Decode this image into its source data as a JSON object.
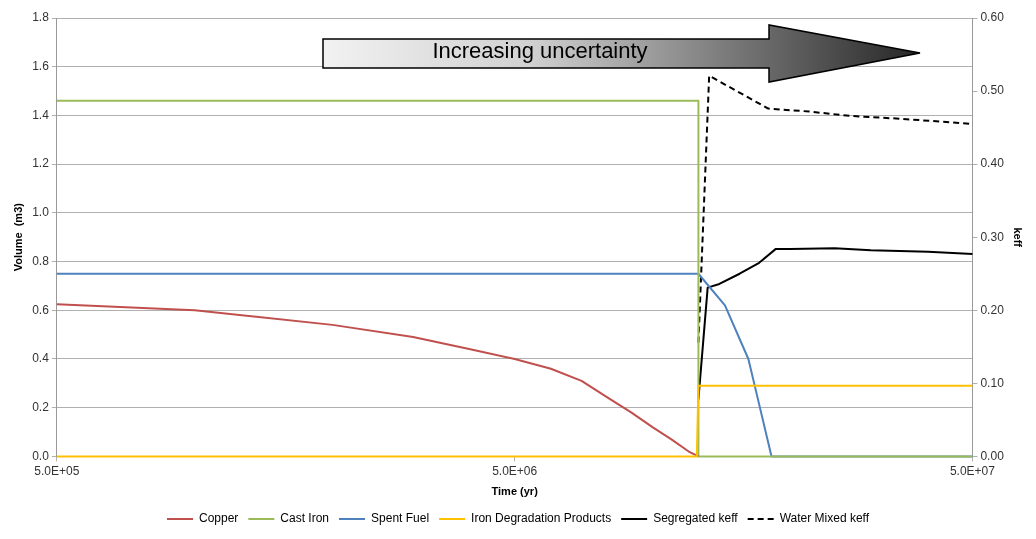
{
  "chart_data": {
    "type": "line",
    "xlabel": "Time (yr)",
    "ylabel": "Volume  (m3)",
    "y2label": "keff",
    "log": "x",
    "grid": "y",
    "legend": "bottom",
    "marker": "none",
    "line_style": "solid",
    "xlim": [
      500000,
      50000000
    ],
    "xticks": [
      {
        "value": 500000,
        "label": "5.0E+05"
      },
      {
        "value": 5000000,
        "label": "5.0E+06"
      },
      {
        "value": 50000000,
        "label": "5.0E+07"
      }
    ],
    "ylim": [
      0,
      1.8
    ],
    "yticks": [
      {
        "value": 0,
        "label": "0.0"
      },
      0.2,
      0.4,
      0.6,
      0.8,
      {
        "value": 1,
        "label": "1.0"
      },
      1.2,
      1.4,
      1.6,
      1.8
    ],
    "y2lim": [
      0,
      0.6
    ],
    "y2ticks": [
      {
        "value": 0,
        "label": "0.00"
      },
      {
        "value": 0.1,
        "label": "0.10"
      },
      {
        "value": 0.2,
        "label": "0.20"
      },
      {
        "value": 0.3,
        "label": "0.30"
      },
      {
        "value": 0.4,
        "label": "0.40"
      },
      {
        "value": 0.5,
        "label": "0.50"
      },
      {
        "value": 0.6,
        "label": "0.60"
      }
    ],
    "annotations": [
      "Increasing uncertainty"
    ],
    "series": [
      {
        "name": "Copper",
        "color": "#c0504d",
        "x": [
          500000,
          1000000,
          2000000,
          3000000,
          4000000,
          5000000,
          6000000,
          7000000,
          8000000,
          9000000,
          10000000,
          11000000,
          12000000,
          12600000
        ],
        "values": [
          0.625,
          0.6,
          0.54,
          0.49,
          0.44,
          0.4,
          0.36,
          0.31,
          0.24,
          0.18,
          0.12,
          0.07,
          0.02,
          0
        ]
      },
      {
        "name": "Cast Iron",
        "color": "#9bbb59",
        "x": [
          500000,
          12600000,
          12600000,
          50000000
        ],
        "values": [
          1.46,
          1.46,
          0,
          0
        ]
      },
      {
        "name": "Spent Fuel",
        "color": "#4f81bd",
        "x": [
          500000,
          12600000,
          14400000,
          16200000,
          18200000,
          50000000
        ],
        "values": [
          0.75,
          0.75,
          0.62,
          0.4,
          0,
          0
        ]
      },
      {
        "name": "Iron Degradation Products",
        "color": "#ffc000",
        "x": [
          500000,
          12500000,
          12600000,
          50000000
        ],
        "values": [
          0,
          0,
          0.29,
          0.29
        ]
      },
      {
        "name": "Segregated keff",
        "color": "#000000",
        "axis": "y2",
        "x": [
          12600000,
          13200000,
          14000000,
          15500000,
          17100000,
          18600000,
          20000000,
          25000000,
          30000000,
          40000000,
          50000000
        ],
        "values": [
          0.078,
          0.231,
          0.236,
          0.25,
          0.265,
          0.284,
          0.284,
          0.285,
          0.282,
          0.28,
          0.277
        ]
      },
      {
        "name": "Water Mixed keff",
        "color": "#000000",
        "axis": "y2",
        "line_style": "dashed",
        "x": [
          12600000,
          13300000,
          17900000,
          22000000,
          27000000,
          35000000,
          50000000
        ],
        "values": [
          0.156,
          0.521,
          0.476,
          0.472,
          0.466,
          0.462,
          0.455
        ]
      }
    ]
  }
}
